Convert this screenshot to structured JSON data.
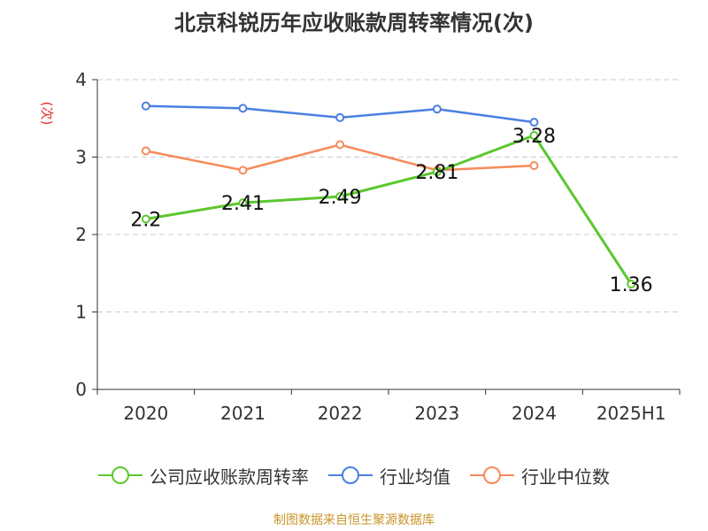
{
  "title": "北京科锐历年应收账款周转率情况(次)",
  "source": "制图数据来自恒生聚源数据库",
  "colors": {
    "company": "#5cc72e",
    "industry_avg": "#4a7fe0",
    "industry_median": "#f68a5a",
    "axis": "#333333",
    "grid": "#cccccc",
    "source": "#c8952a",
    "unit": "#e0302a"
  },
  "chart_data": {
    "type": "line",
    "title": "北京科锐历年应收账款周转率情况(次)",
    "ylabel": "(次)",
    "xlabel": "",
    "categories": [
      "2020",
      "2021",
      "2022",
      "2023",
      "2024",
      "2025H1"
    ],
    "ylim": [
      0,
      4
    ],
    "yticks": [
      0,
      1,
      2,
      3,
      4
    ],
    "grid": true,
    "legend_position": "bottom",
    "series": [
      {
        "name": "公司应收账款周转率",
        "values": [
          2.2,
          2.41,
          2.49,
          2.81,
          3.28,
          1.36
        ],
        "labels": [
          "2.2",
          "2.41",
          "2.49",
          "2.81",
          "3.28",
          "1.36"
        ],
        "color": "#5cc72e"
      },
      {
        "name": "行业均值",
        "values": [
          3.66,
          3.63,
          3.51,
          3.62,
          3.45,
          null
        ],
        "color": "#4a7fe0"
      },
      {
        "name": "行业中位数",
        "values": [
          3.08,
          2.83,
          3.16,
          2.83,
          2.89,
          null
        ],
        "color": "#f68a5a"
      }
    ]
  }
}
